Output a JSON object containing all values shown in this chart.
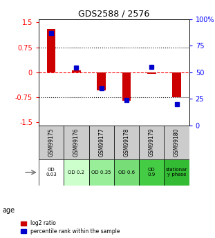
{
  "title": "GDS2588 / 2576",
  "samples": [
    "GSM99175",
    "GSM99176",
    "GSM99177",
    "GSM99178",
    "GSM99179",
    "GSM99180"
  ],
  "log2_ratio": [
    1.3,
    0.05,
    -0.55,
    -0.85,
    -0.05,
    -0.75
  ],
  "percentile_rank": [
    87,
    54,
    35,
    24,
    55,
    20
  ],
  "ylim": [
    -1.6,
    1.6
  ],
  "yticks_left": [
    -1.5,
    -0.75,
    0,
    0.75,
    1.5
  ],
  "yticks_right": [
    0,
    25,
    50,
    75,
    100
  ],
  "hline_values": [
    -0.75,
    0,
    0.75
  ],
  "bar_color": "#cc0000",
  "dot_color": "#0000cc",
  "table_labels": [
    "OD\n0.03",
    "OD 0.2",
    "OD 0.35",
    "OD 0.6",
    "OD\n0.9",
    "stationar\ny phase"
  ],
  "table_bg_colors": [
    "#ffffff",
    "#ccffcc",
    "#99ee99",
    "#77dd77",
    "#44cc44",
    "#33bb33"
  ],
  "sample_bg_color": "#cccccc",
  "row_label": "age",
  "legend_red_label": "log2 ratio",
  "legend_blue_label": "percentile rank within the sample"
}
